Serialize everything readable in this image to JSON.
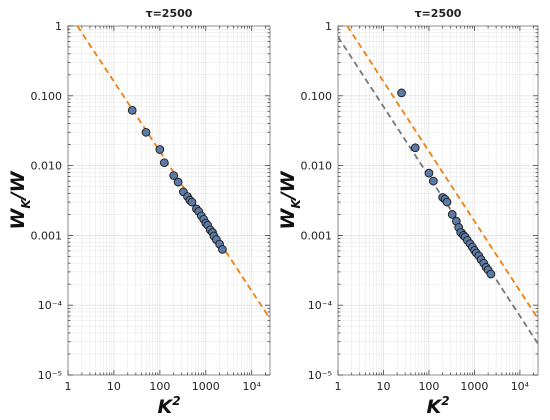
{
  "colors": {
    "marker_fill": "#5b7aa6",
    "marker_edge": "#1a1a1a",
    "fit_line": "#f07f0c",
    "reference_line": "#777777",
    "grid": "#e4e4e4",
    "frame": "#8c8c8c"
  },
  "chart_data": [
    {
      "type": "scatter",
      "title": "τ=2500",
      "xlabel": "K²",
      "ylabel": "W_K/W",
      "xscale": "log",
      "yscale": "log",
      "xlim": [
        1,
        25000
      ],
      "ylim": [
        1e-05,
        1
      ],
      "xticks": [
        {
          "value": 1,
          "label": "1"
        },
        {
          "value": 10,
          "label": "10"
        },
        {
          "value": 100,
          "label": "100"
        },
        {
          "value": 1000,
          "label": "1000"
        },
        {
          "value": 10000,
          "label": "10⁴"
        }
      ],
      "yticks": [
        {
          "value": 1e-05,
          "label": "10⁻⁵"
        },
        {
          "value": 0.0001,
          "label": "10⁻⁴"
        },
        {
          "value": 0.001,
          "label": "0.001"
        },
        {
          "value": 0.01,
          "label": "0.010"
        },
        {
          "value": 0.1,
          "label": "0.100"
        },
        {
          "value": 1,
          "label": "1"
        }
      ],
      "grid": true,
      "series": [
        {
          "kind": "points",
          "x": [
            25,
            50,
            100,
            125,
            200,
            250,
            325,
            400,
            450,
            500,
            625,
            700,
            800,
            900,
            1000,
            1100,
            1250,
            1400,
            1500,
            1700,
            2000,
            2300
          ],
          "y": [
            0.062,
            0.03,
            0.017,
            0.011,
            0.0072,
            0.0058,
            0.0042,
            0.0036,
            0.0032,
            0.003,
            0.0024,
            0.0022,
            0.0019,
            0.0017,
            0.0015,
            0.0014,
            0.0012,
            0.0011,
            0.00098,
            0.00087,
            0.00075,
            0.00063
          ]
        },
        {
          "kind": "dashed-line",
          "color_key": "fit_line",
          "x": [
            1.6,
            25000
          ],
          "y": [
            1,
            6.4e-05
          ]
        }
      ]
    },
    {
      "type": "scatter",
      "title": "τ=2500",
      "xlabel": "K²",
      "ylabel": "W_K/W",
      "xscale": "log",
      "yscale": "log",
      "xlim": [
        1,
        25000
      ],
      "ylim": [
        1e-05,
        1
      ],
      "xticks": [
        {
          "value": 1,
          "label": "1"
        },
        {
          "value": 10,
          "label": "10"
        },
        {
          "value": 100,
          "label": "100"
        },
        {
          "value": 1000,
          "label": "1000"
        },
        {
          "value": 10000,
          "label": "10⁴"
        }
      ],
      "yticks": [
        {
          "value": 1e-05,
          "label": "10⁻⁵"
        },
        {
          "value": 0.0001,
          "label": "10⁻⁴"
        },
        {
          "value": 0.001,
          "label": "0.001"
        },
        {
          "value": 0.01,
          "label": "0.010"
        },
        {
          "value": 0.1,
          "label": "0.100"
        },
        {
          "value": 1,
          "label": "1"
        }
      ],
      "grid": true,
      "series": [
        {
          "kind": "points",
          "x": [
            25,
            50,
            100,
            125,
            200,
            225,
            250,
            325,
            400,
            450,
            500,
            575,
            625,
            700,
            800,
            900,
            1000,
            1100,
            1250,
            1400,
            1600,
            1800,
            2000,
            2300
          ],
          "y": [
            0.11,
            0.018,
            0.0078,
            0.006,
            0.0035,
            0.0033,
            0.003,
            0.002,
            0.0016,
            0.0013,
            0.0011,
            0.001,
            0.00095,
            0.00085,
            0.00076,
            0.00068,
            0.00061,
            0.00056,
            0.00051,
            0.00045,
            0.0004,
            0.00035,
            0.00032,
            0.00028
          ]
        },
        {
          "kind": "dashed-line",
          "color_key": "fit_line",
          "x": [
            1.6,
            25000
          ],
          "y": [
            1,
            6.4e-05
          ]
        },
        {
          "kind": "dashed-line",
          "color_key": "reference_line",
          "x": [
            1,
            25000
          ],
          "y": [
            0.7,
            2.8e-05
          ]
        }
      ]
    }
  ]
}
